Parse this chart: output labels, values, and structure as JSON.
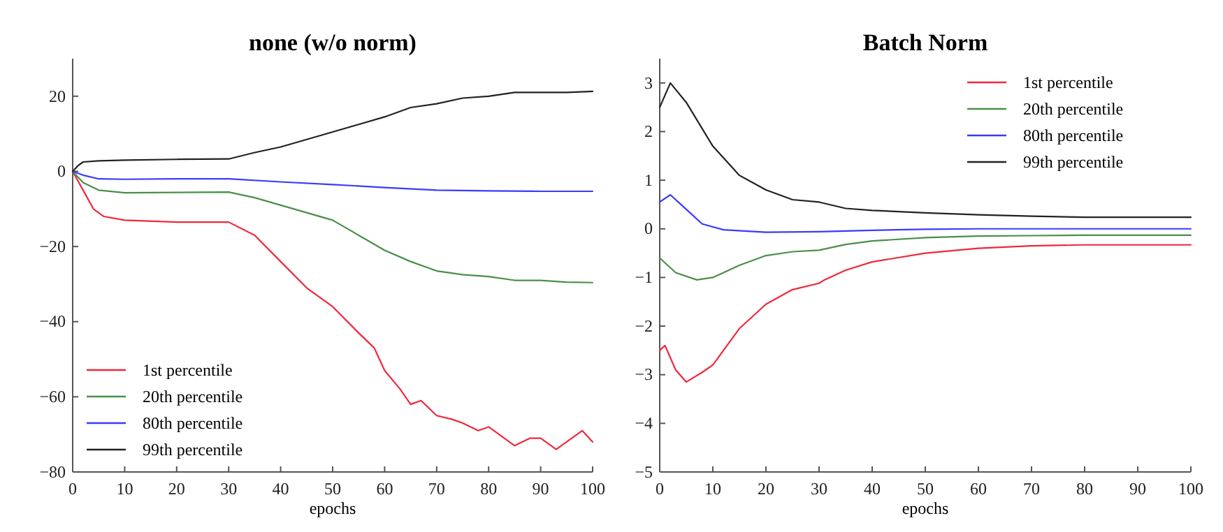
{
  "chart_data": [
    {
      "type": "line",
      "title": "none (w/o norm)",
      "xlabel": "epochs",
      "xlim": [
        0,
        100
      ],
      "xticks": [
        0,
        10,
        20,
        30,
        40,
        50,
        60,
        70,
        80,
        90,
        100
      ],
      "ylim": [
        -80,
        30
      ],
      "yticks": [
        -80,
        -60,
        -40,
        -20,
        0,
        20
      ],
      "legend": "bottom left",
      "grid": false,
      "series": [
        {
          "name": "1st percentile",
          "color": "#f0283c",
          "x": [
            0,
            2,
            4,
            6,
            10,
            20,
            30,
            35,
            40,
            45,
            50,
            55,
            58,
            60,
            63,
            65,
            67,
            70,
            73,
            75,
            78,
            80,
            83,
            85,
            88,
            90,
            93,
            95,
            98,
            100
          ],
          "values": [
            0,
            -5,
            -10,
            -12,
            -13,
            -13.5,
            -13.5,
            -17,
            -24,
            -31,
            -36,
            -43,
            -47,
            -53,
            -58,
            -62,
            -61,
            -65,
            -66,
            -67,
            -69,
            -68,
            -71,
            -73,
            -71,
            -71,
            -74,
            -72,
            -69,
            -72
          ]
        },
        {
          "name": "20th percentile",
          "color": "#4a8f4a",
          "x": [
            0,
            2,
            5,
            10,
            20,
            30,
            35,
            40,
            45,
            50,
            55,
            60,
            65,
            70,
            75,
            80,
            85,
            90,
            95,
            100
          ],
          "values": [
            0,
            -3,
            -5,
            -5.7,
            -5.6,
            -5.5,
            -7,
            -9,
            -11,
            -13,
            -17,
            -21,
            -24,
            -26.5,
            -27.5,
            -28,
            -29,
            -29,
            -29.5,
            -29.6
          ]
        },
        {
          "name": "80th percentile",
          "color": "#3a3aff",
          "x": [
            0,
            2,
            5,
            10,
            20,
            30,
            40,
            50,
            60,
            70,
            80,
            90,
            100
          ],
          "values": [
            0,
            -1,
            -2,
            -2.1,
            -2,
            -2,
            -2.8,
            -3.5,
            -4.3,
            -5,
            -5.2,
            -5.3,
            -5.3
          ]
        },
        {
          "name": "99th percentile",
          "color": "#222222",
          "x": [
            0,
            1,
            2,
            5,
            10,
            20,
            30,
            35,
            40,
            45,
            50,
            55,
            60,
            65,
            70,
            75,
            80,
            85,
            90,
            95,
            100
          ],
          "values": [
            0,
            1.5,
            2.5,
            2.8,
            3,
            3.2,
            3.3,
            5,
            6.5,
            8.5,
            10.5,
            12.5,
            14.5,
            17,
            18,
            19.5,
            20,
            21,
            21,
            21,
            21.3
          ]
        }
      ]
    },
    {
      "type": "line",
      "title": "Batch Norm",
      "xlabel": "epochs",
      "xlim": [
        0,
        100
      ],
      "xticks": [
        0,
        10,
        20,
        30,
        40,
        50,
        60,
        70,
        80,
        90,
        100
      ],
      "ylim": [
        -5,
        3.5
      ],
      "yticks": [
        -5,
        -4,
        -3,
        -2,
        -1,
        0,
        1,
        2,
        3
      ],
      "legend": "top right",
      "grid": false,
      "series": [
        {
          "name": "1st percentile",
          "color": "#f0283c",
          "x": [
            0,
            1,
            3,
            5,
            8,
            10,
            15,
            20,
            25,
            30,
            31,
            35,
            40,
            50,
            60,
            70,
            80,
            90,
            100
          ],
          "values": [
            -2.5,
            -2.4,
            -2.9,
            -3.15,
            -2.95,
            -2.8,
            -2.05,
            -1.55,
            -1.25,
            -1.12,
            -1.05,
            -0.85,
            -0.68,
            -0.5,
            -0.4,
            -0.35,
            -0.33,
            -0.33,
            -0.33
          ]
        },
        {
          "name": "20th percentile",
          "color": "#4a8f4a",
          "x": [
            0,
            3,
            7,
            10,
            15,
            20,
            25,
            30,
            35,
            40,
            50,
            60,
            70,
            80,
            100
          ],
          "values": [
            -0.6,
            -0.9,
            -1.05,
            -1,
            -0.75,
            -0.55,
            -0.47,
            -0.44,
            -0.32,
            -0.25,
            -0.18,
            -0.15,
            -0.14,
            -0.13,
            -0.13
          ]
        },
        {
          "name": "80th percentile",
          "color": "#3a3aff",
          "x": [
            0,
            2,
            5,
            8,
            12,
            20,
            30,
            40,
            50,
            60,
            100
          ],
          "values": [
            0.55,
            0.7,
            0.4,
            0.1,
            -0.02,
            -0.07,
            -0.06,
            -0.03,
            -0.01,
            0,
            0
          ]
        },
        {
          "name": "99th percentile",
          "color": "#222222",
          "x": [
            0,
            2,
            5,
            10,
            15,
            20,
            25,
            30,
            35,
            40,
            50,
            60,
            70,
            80,
            90,
            100
          ],
          "values": [
            2.5,
            3,
            2.6,
            1.7,
            1.1,
            0.8,
            0.6,
            0.55,
            0.42,
            0.38,
            0.33,
            0.29,
            0.26,
            0.24,
            0.24,
            0.24
          ]
        }
      ]
    }
  ]
}
